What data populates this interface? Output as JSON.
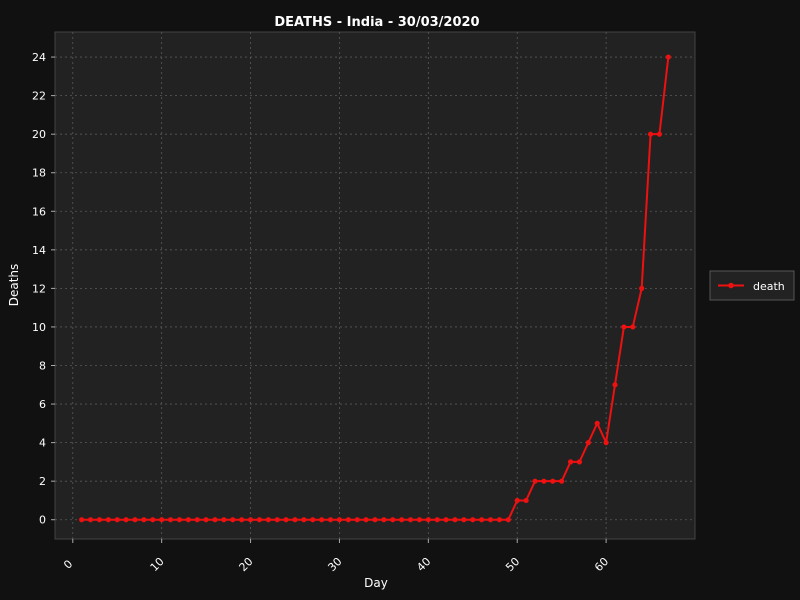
{
  "chart_data": {
    "type": "line",
    "title": "DEATHS - India - 30/03/2020",
    "xlabel": "Day",
    "ylabel": "Deaths",
    "xlim": [
      -2,
      70
    ],
    "ylim": [
      -1.0,
      25.3
    ],
    "x_ticks": [
      0,
      10,
      20,
      30,
      40,
      50,
      60
    ],
    "y_ticks": [
      0,
      2,
      4,
      6,
      8,
      10,
      12,
      14,
      16,
      18,
      20,
      22,
      24
    ],
    "grid": true,
    "legend_position": "right",
    "series": [
      {
        "name": "death",
        "color": "#ee1111",
        "x": [
          1,
          2,
          3,
          4,
          5,
          6,
          7,
          8,
          9,
          10,
          11,
          12,
          13,
          14,
          15,
          16,
          17,
          18,
          19,
          20,
          21,
          22,
          23,
          24,
          25,
          26,
          27,
          28,
          29,
          30,
          31,
          32,
          33,
          34,
          35,
          36,
          37,
          38,
          39,
          40,
          41,
          42,
          43,
          44,
          45,
          46,
          47,
          48,
          49,
          50,
          51,
          52,
          53,
          54,
          55,
          56,
          57,
          58,
          59,
          60,
          61,
          62,
          63,
          64,
          65,
          66,
          67
        ],
        "values": [
          0,
          0,
          0,
          0,
          0,
          0,
          0,
          0,
          0,
          0,
          0,
          0,
          0,
          0,
          0,
          0,
          0,
          0,
          0,
          0,
          0,
          0,
          0,
          0,
          0,
          0,
          0,
          0,
          0,
          0,
          0,
          0,
          0,
          0,
          0,
          0,
          0,
          0,
          0,
          0,
          0,
          0,
          0,
          0,
          0,
          0,
          0,
          0,
          0,
          1,
          1,
          2,
          2,
          2,
          2,
          3,
          3,
          4,
          5,
          4,
          7,
          10,
          10,
          12,
          20,
          20,
          24
        ]
      }
    ]
  }
}
